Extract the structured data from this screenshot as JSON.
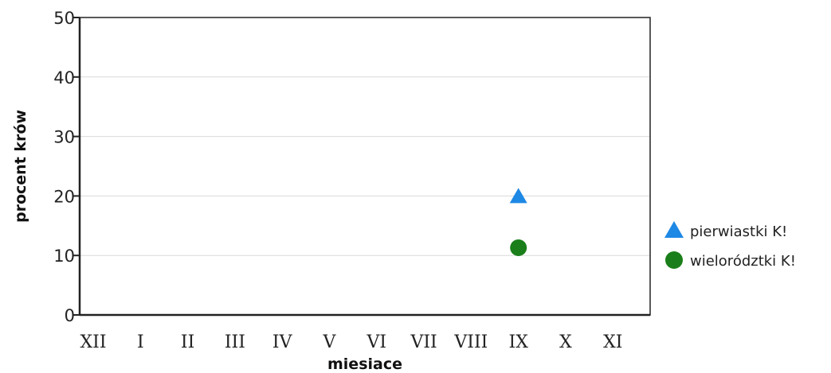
{
  "chart_data": {
    "type": "scatter",
    "xlabel": "miesiace",
    "ylabel": "procent krów",
    "categories": [
      "XII",
      "I",
      "II",
      "III",
      "IV",
      "V",
      "VI",
      "VII",
      "VIII",
      "IX",
      "X",
      "XI"
    ],
    "ylim": [
      0,
      50
    ],
    "yticks": [
      0,
      10,
      20,
      30,
      40,
      50
    ],
    "grid": true,
    "legend_position": "right",
    "series": [
      {
        "name": "pierwiastki K!",
        "marker": "triangle",
        "color": "#1e88e5",
        "points": [
          {
            "x": "IX",
            "y": 20
          }
        ]
      },
      {
        "name": "wielorództki K!",
        "marker": "circle",
        "color": "#1a7f1a",
        "points": [
          {
            "x": "IX",
            "y": 11.3
          }
        ]
      }
    ]
  }
}
